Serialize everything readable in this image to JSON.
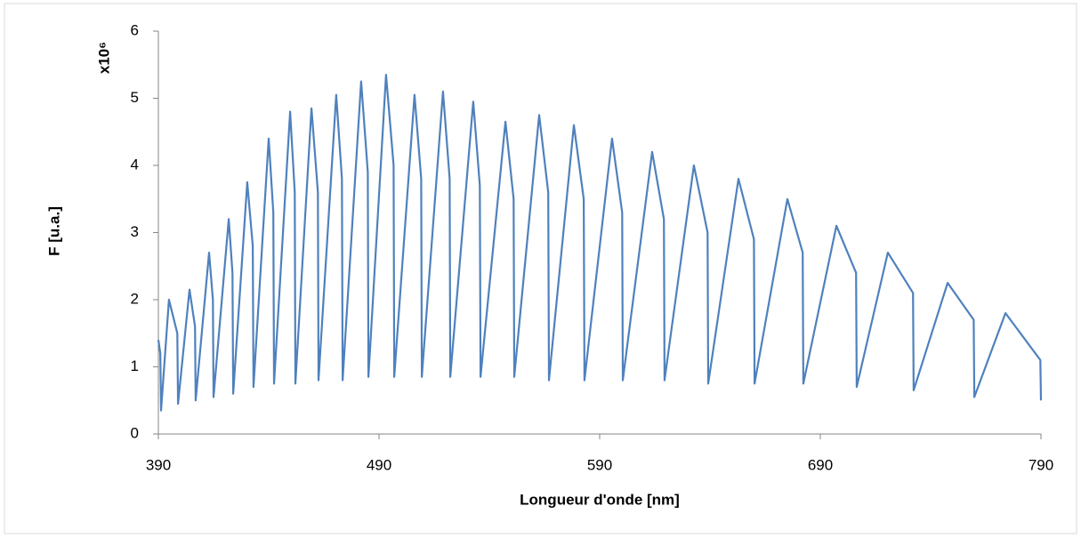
{
  "chart_data": {
    "type": "line",
    "x_label": "Longueur d'onde [nm]",
    "y_label": "F [u.a.]",
    "y_multiplier": "x10⁶",
    "xlim": [
      390,
      790
    ],
    "xticks": [
      390,
      490,
      590,
      690,
      790
    ],
    "ylim": [
      0,
      6
    ],
    "yticks": [
      0,
      1,
      2,
      3,
      4,
      5,
      6
    ],
    "grid": false,
    "series": [
      {
        "color": "#4f81bd",
        "x": [
          390,
          390.9,
          391.2,
          394.8,
          398.6,
          398.9,
          404.1,
          406.6,
          406.9,
          413.0,
          414.7,
          415.0,
          421.9,
          423.6,
          423.9,
          430.3,
          432.8,
          433.1,
          440.0,
          442.1,
          442.4,
          449.7,
          451.8,
          452.1,
          459.4,
          462.3,
          462.6,
          470.6,
          473.2,
          473.5,
          481.9,
          484.9,
          485.2,
          493.2,
          496.6,
          496.9,
          506.1,
          509.1,
          509.4,
          519.0,
          522.0,
          522.3,
          532.7,
          535.7,
          536.0,
          547.3,
          551.0,
          551.3,
          562.6,
          566.7,
          567.0,
          578.3,
          582.8,
          583.1,
          595.6,
          600.2,
          600.5,
          613.8,
          619.1,
          619.4,
          632.7,
          638.9,
          639.2,
          652.9,
          659.9,
          660.2,
          675.1,
          682.0,
          682.3,
          697.3,
          706.2,
          706.5,
          720.6,
          732.0,
          732.3,
          747.7,
          759.5,
          759.8,
          773.9,
          789.7,
          790.0
        ],
        "values": [
          1.4,
          1.2,
          0.35,
          2.0,
          1.5,
          0.45,
          2.15,
          1.6,
          0.5,
          2.7,
          2.0,
          0.55,
          3.2,
          2.4,
          0.6,
          3.75,
          2.8,
          0.7,
          4.4,
          3.3,
          0.75,
          4.8,
          3.6,
          0.75,
          4.85,
          3.6,
          0.8,
          5.05,
          3.8,
          0.8,
          5.25,
          3.9,
          0.85,
          5.35,
          4.0,
          0.85,
          5.05,
          3.8,
          0.85,
          5.1,
          3.8,
          0.85,
          4.95,
          3.7,
          0.85,
          4.65,
          3.5,
          0.85,
          4.75,
          3.6,
          0.8,
          4.6,
          3.5,
          0.8,
          4.4,
          3.3,
          0.8,
          4.2,
          3.2,
          0.8,
          4.0,
          3.0,
          0.75,
          3.8,
          2.9,
          0.75,
          3.5,
          2.7,
          0.75,
          3.1,
          2.4,
          0.7,
          2.7,
          2.1,
          0.65,
          2.25,
          1.7,
          0.55,
          1.8,
          1.1,
          0.5
        ]
      }
    ]
  }
}
